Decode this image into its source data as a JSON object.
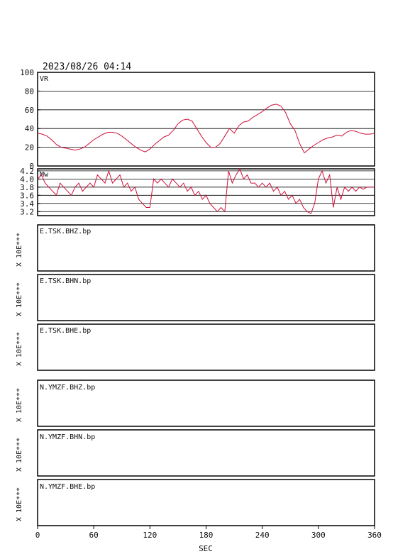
{
  "datetime": "2023/08/26 04:14",
  "colors": {
    "trace": "#d0103a",
    "frame": "#000000"
  },
  "chart_data": [
    {
      "type": "line",
      "panel_label": "VR",
      "ylim": [
        0,
        100
      ],
      "yticks": [
        "100",
        "80",
        "60",
        "40",
        "20",
        "0"
      ],
      "grid": "horizontal",
      "x": [
        0,
        5,
        10,
        15,
        20,
        25,
        30,
        35,
        40,
        45,
        50,
        55,
        60,
        65,
        70,
        75,
        80,
        85,
        90,
        95,
        100,
        105,
        110,
        115,
        120,
        125,
        130,
        135,
        140,
        145,
        150,
        155,
        160,
        165,
        170,
        175,
        180,
        185,
        190,
        195,
        200,
        205,
        210,
        215,
        220,
        225,
        230,
        235,
        240,
        245,
        250,
        255,
        260,
        265,
        270,
        275,
        280,
        285,
        290,
        295,
        300,
        305,
        310,
        315,
        320,
        325,
        330,
        335,
        340,
        345,
        350,
        355,
        360
      ],
      "values": [
        35,
        34,
        32,
        28,
        23,
        20,
        19,
        18,
        17,
        18,
        20,
        24,
        28,
        31,
        34,
        36,
        36,
        35,
        32,
        28,
        24,
        20,
        17,
        15,
        18,
        23,
        27,
        31,
        33,
        38,
        45,
        49,
        50,
        48,
        40,
        32,
        25,
        20,
        20,
        24,
        32,
        40,
        35,
        43,
        47,
        48,
        52,
        55,
        58,
        62,
        65,
        66,
        64,
        57,
        45,
        38,
        24,
        14,
        18,
        22,
        25,
        28,
        30,
        31,
        33,
        32,
        36,
        38,
        37,
        35,
        34,
        34,
        35
      ]
    },
    {
      "type": "line",
      "panel_label": "Mw",
      "ylim": [
        3.1,
        4.25
      ],
      "yticks": [
        "4.2",
        "4.0",
        "3.8",
        "3.6",
        "3.4",
        "3.2"
      ],
      "grid": "horizontal",
      "x": [
        0,
        4,
        8,
        12,
        16,
        20,
        24,
        28,
        32,
        36,
        40,
        44,
        48,
        52,
        56,
        60,
        64,
        68,
        72,
        76,
        80,
        84,
        88,
        92,
        96,
        100,
        104,
        108,
        112,
        116,
        120,
        124,
        128,
        132,
        136,
        140,
        144,
        148,
        152,
        156,
        160,
        164,
        168,
        172,
        176,
        180,
        184,
        188,
        192,
        196,
        200,
        204,
        208,
        212,
        216,
        220,
        224,
        228,
        232,
        236,
        240,
        244,
        248,
        252,
        256,
        260,
        264,
        268,
        272,
        276,
        280,
        284,
        288,
        292,
        296,
        300,
        304,
        308,
        312,
        316,
        320,
        324,
        328,
        332,
        336,
        340,
        344,
        348,
        352,
        356,
        360
      ],
      "values": [
        4.0,
        4.1,
        3.9,
        3.8,
        3.7,
        3.6,
        3.9,
        3.8,
        3.7,
        3.6,
        3.8,
        3.9,
        3.7,
        3.8,
        3.9,
        3.8,
        4.1,
        4.0,
        3.9,
        4.2,
        3.9,
        4.0,
        4.1,
        3.8,
        3.9,
        3.7,
        3.8,
        3.5,
        3.4,
        3.3,
        3.3,
        4.0,
        3.9,
        4.0,
        3.9,
        3.8,
        4.0,
        3.9,
        3.8,
        3.9,
        3.7,
        3.8,
        3.6,
        3.7,
        3.5,
        3.6,
        3.4,
        3.3,
        3.2,
        3.3,
        3.2,
        4.2,
        3.9,
        4.1,
        4.25,
        4.0,
        4.1,
        3.9,
        3.9,
        3.8,
        3.9,
        3.8,
        3.9,
        3.7,
        3.8,
        3.6,
        3.7,
        3.5,
        3.6,
        3.4,
        3.5,
        3.3,
        3.2,
        3.15,
        3.4,
        4.0,
        4.2,
        3.9,
        4.1,
        3.3,
        3.8,
        3.5,
        3.8,
        3.7,
        3.8,
        3.7,
        3.8,
        3.75,
        3.8,
        3.8,
        3.8
      ]
    },
    {
      "type": "line",
      "channel": "E.TSK.BHZ.bp",
      "scale_label": "X 10E***",
      "values": []
    },
    {
      "type": "line",
      "channel": "E.TSK.BHN.bp",
      "scale_label": "X 10E***",
      "values": []
    },
    {
      "type": "line",
      "channel": "E.TSK.BHE.bp",
      "scale_label": "X 10E***",
      "values": []
    },
    {
      "type": "line",
      "channel": "N.YMZF.BHZ.bp",
      "scale_label": "X 10E***",
      "values": []
    },
    {
      "type": "line",
      "channel": "N.YMZF.BHN.bp",
      "scale_label": "X 10E***",
      "values": []
    },
    {
      "type": "line",
      "channel": "N.YMZF.BHE.bp",
      "scale_label": "X 10E***",
      "values": []
    }
  ],
  "x_axis": {
    "label": "SEC",
    "xlim": [
      0,
      360
    ],
    "ticks": [
      0,
      60,
      120,
      180,
      240,
      300,
      360
    ]
  }
}
